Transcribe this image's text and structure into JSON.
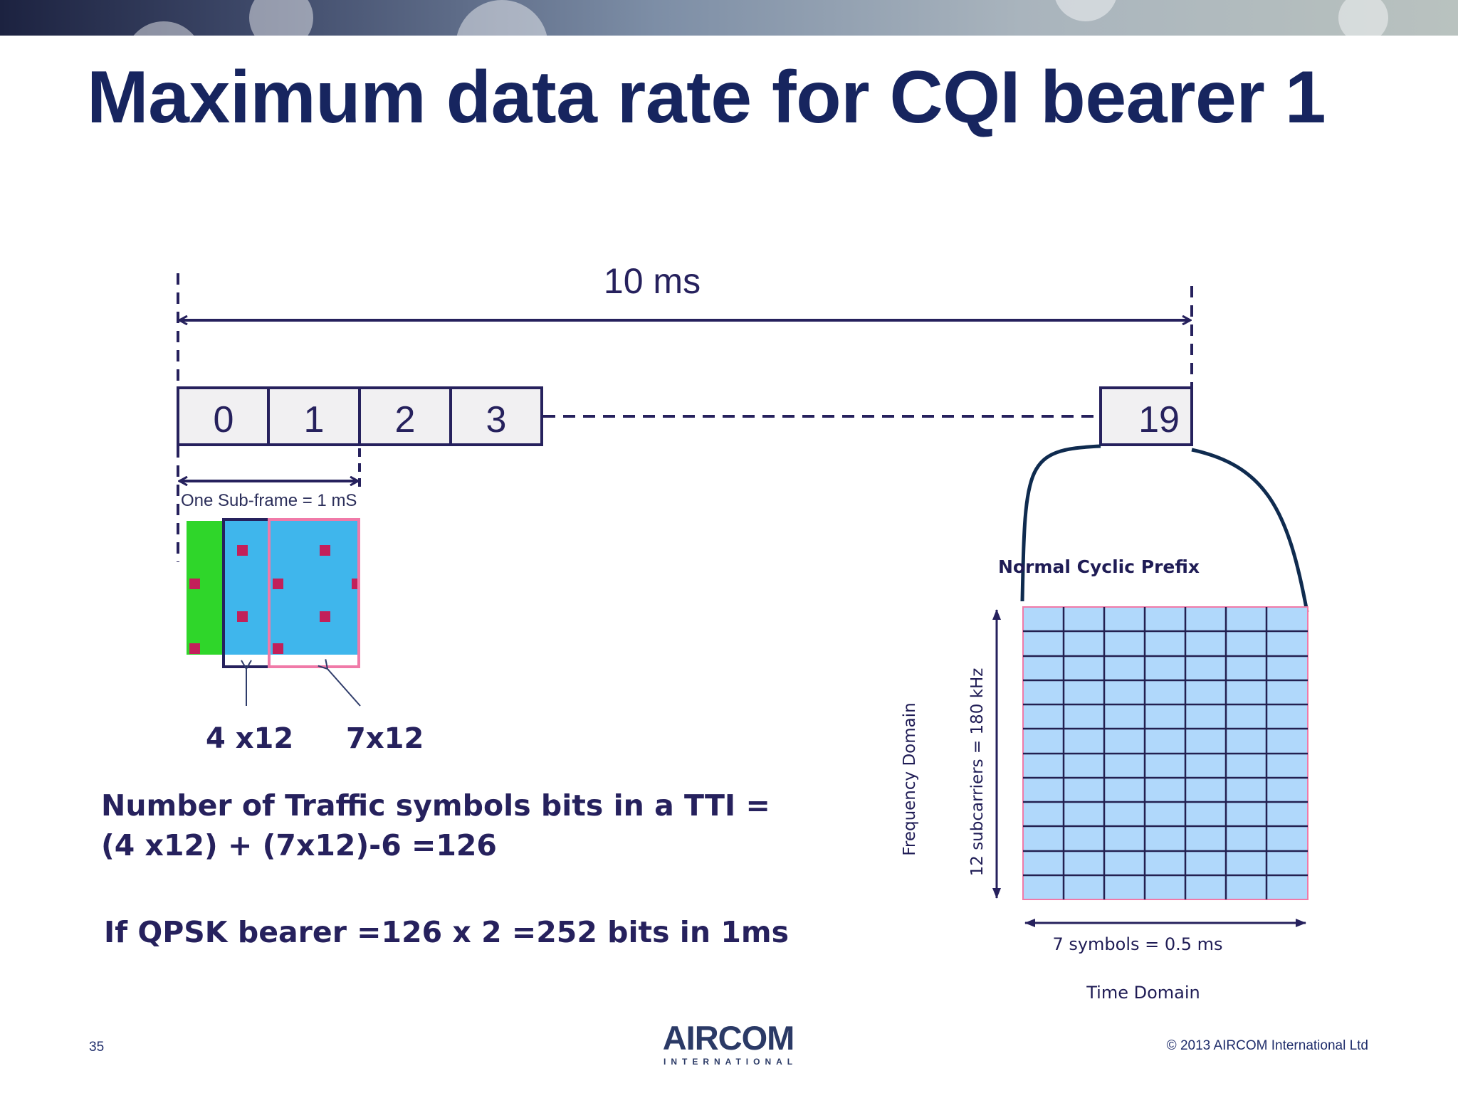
{
  "slide": {
    "title": "Maximum data rate for CQI bearer 1",
    "page_number": "35",
    "copyright": "© 2013 AIRCOM International Ltd",
    "logo": {
      "word": "AIRCOM",
      "subtitle": "INTERNATIONAL"
    }
  },
  "frame": {
    "duration_label": "10 ms",
    "subframes": [
      "0",
      "1",
      "2",
      "3"
    ],
    "last_subframe": "19",
    "subframe_label": "One Sub-frame = 1 mS"
  },
  "resource_block": {
    "label_a": "4 x12",
    "label_b": "7x12"
  },
  "slot": {
    "title": "Normal Cyclic Prefix",
    "frequency_axis": "Frequency Domain",
    "subcarrier_axis": "12 subcarriers = 180 kHz",
    "symbols_label": "7 symbols = 0.5 ms",
    "time_axis": "Time Domain"
  },
  "text": {
    "formula": "Number of Traffic symbols bits in a TTI = (4 x12) + (7x12)-6 =126",
    "qpsk": "If QPSK bearer =126 x 2 =252 bits in 1ms"
  },
  "colors": {
    "navy": "#17255f",
    "diagram_line": "#26215d",
    "cell_fill": "#b0d8fb",
    "control_green": "#2fd62a",
    "data_blue": "#3fb6ec",
    "reference_red": "#c2205a",
    "pink_outline": "#f07aa8"
  }
}
